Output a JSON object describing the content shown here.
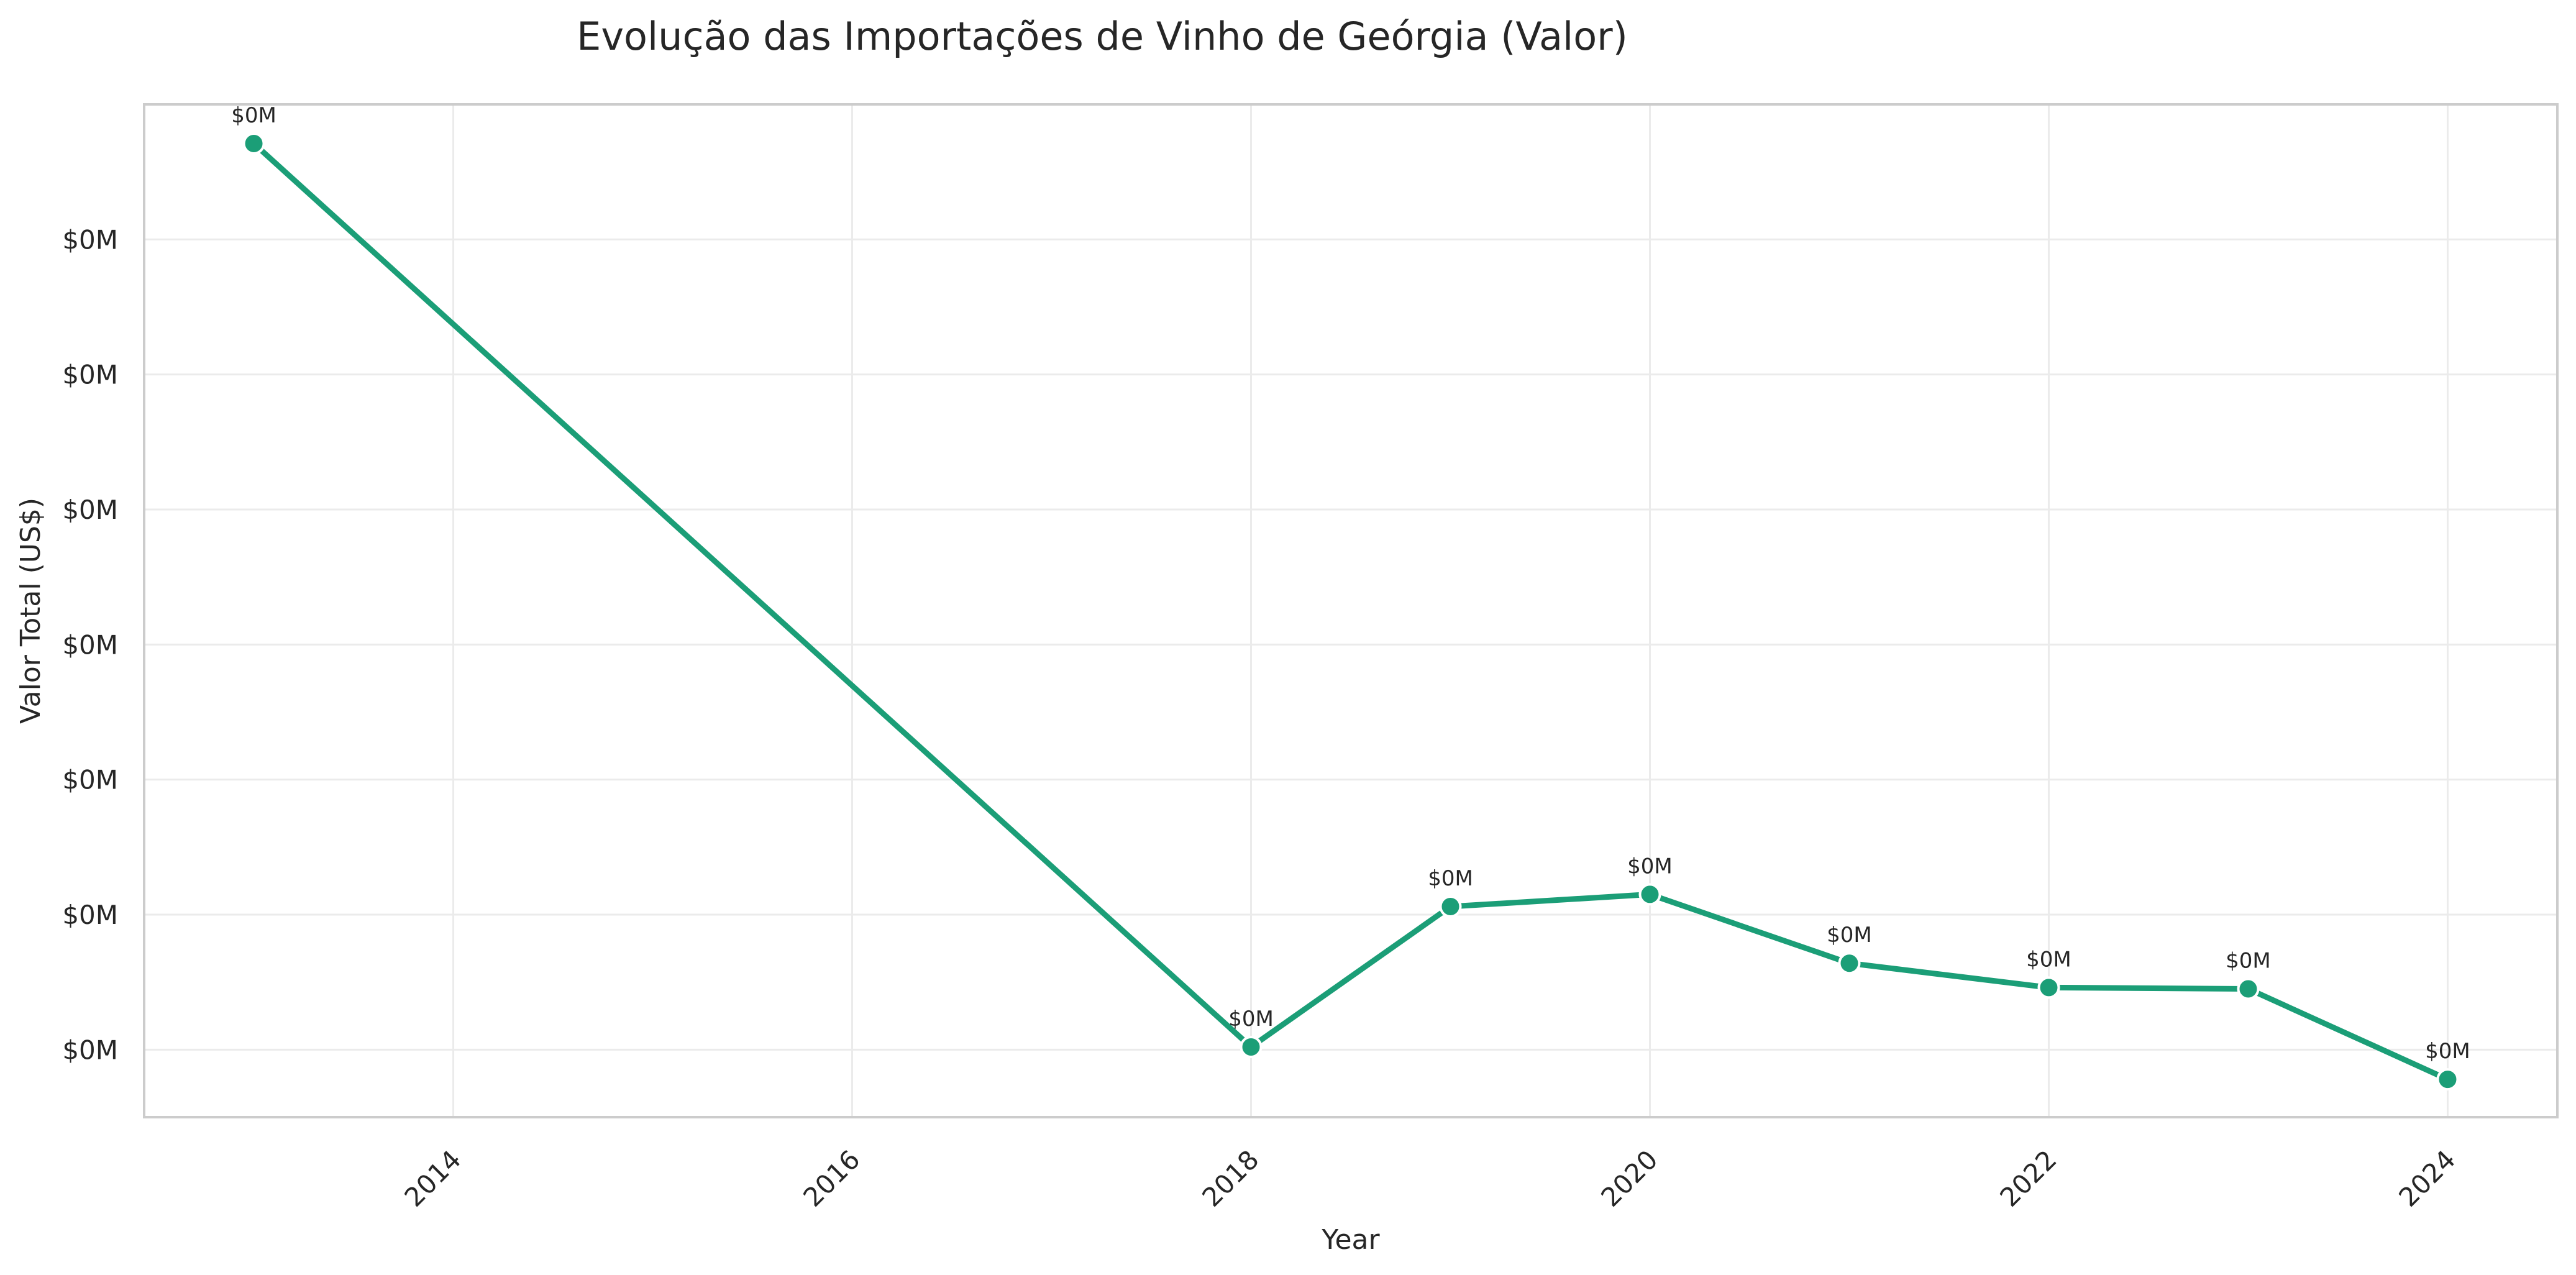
{
  "chart_data": {
    "type": "line",
    "title": "Evolução das Importações de Vinho de Geórgia (Valor)",
    "xlabel": "Year",
    "ylabel": "Valor Total (US$)",
    "x": [
      2013,
      2018,
      2019,
      2020,
      2021,
      2022,
      2023,
      2024
    ],
    "series": [
      {
        "values": [
          6.71,
          0.02,
          1.06,
          1.15,
          0.64,
          0.46,
          0.45,
          -0.22
        ],
        "point_labels": [
          "$0M",
          "$0M",
          "$0M",
          "$0M",
          "$0M",
          "$0M",
          "$0M",
          "$0M"
        ],
        "color": "#1b9e77"
      }
    ],
    "xlim": [
      2012.45,
      2024.55
    ],
    "ylim": [
      -0.5,
      7.0
    ],
    "xticks": [
      2014,
      2016,
      2018,
      2020,
      2022,
      2024
    ],
    "xtick_labels": [
      "2014",
      "2016",
      "2018",
      "2020",
      "2022",
      "2024"
    ],
    "yticks": [
      0,
      1,
      2,
      3,
      4,
      5,
      6
    ],
    "ytick_labels": [
      "$0M",
      "$0M",
      "$0M",
      "$0M",
      "$0M",
      "$0M",
      "$0M"
    ],
    "grid": true,
    "colors": {
      "line": "#1b9e77",
      "grid": "#ebebeb",
      "axis": "#cccccc",
      "text": "#262626"
    }
  }
}
